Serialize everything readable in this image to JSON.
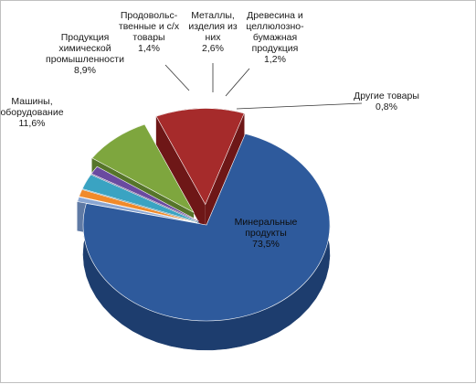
{
  "chart_data": {
    "type": "pie",
    "title": "",
    "slices": [
      {
        "name": "Минеральные продукты",
        "value": 73.5,
        "label_lines": [
          "Минеральные",
          "продукты",
          "73,5%"
        ],
        "color_top": "#2e5a9c",
        "color_side": "#1d3d6e"
      },
      {
        "name": "Другие товары",
        "value": 0.8,
        "label_lines": [
          "Другие товары",
          "0,8%"
        ],
        "color_top": "#8aa6d2",
        "color_side": "#5f7aa5"
      },
      {
        "name": "Древесина и целлюлозно-бумажная продукция",
        "value": 1.2,
        "label_lines": [
          "Древесина и",
          "целлюлозно-",
          "бумажная",
          "продукция",
          "1,2%"
        ],
        "color_top": "#f08a2a",
        "color_side": "#b3611a"
      },
      {
        "name": "Металлы, изделия из них",
        "value": 2.6,
        "label_lines": [
          "Металлы,",
          "изделия из",
          "них",
          "2,6%"
        ],
        "color_top": "#3aa3c2",
        "color_side": "#237189"
      },
      {
        "name": "Продовольственные и с/х товары",
        "value": 1.4,
        "label_lines": [
          "Продовольс-",
          "твенные и с/х",
          "товары",
          "1,4%"
        ],
        "color_top": "#6a4aa0",
        "color_side": "#473170"
      },
      {
        "name": "Продукция химической промышленности",
        "value": 8.9,
        "label_lines": [
          "Продукция",
          "химической",
          "промышленности",
          "8,9%"
        ],
        "color_top": "#7ea63e",
        "color_side": "#56752a"
      },
      {
        "name": "Машины, оборудование",
        "value": 11.6,
        "label_lines": [
          "Машины,",
          "оборудование",
          "11,6%"
        ],
        "color_top": "#a62b2b",
        "color_side": "#6e1717"
      }
    ],
    "legend": "none"
  }
}
